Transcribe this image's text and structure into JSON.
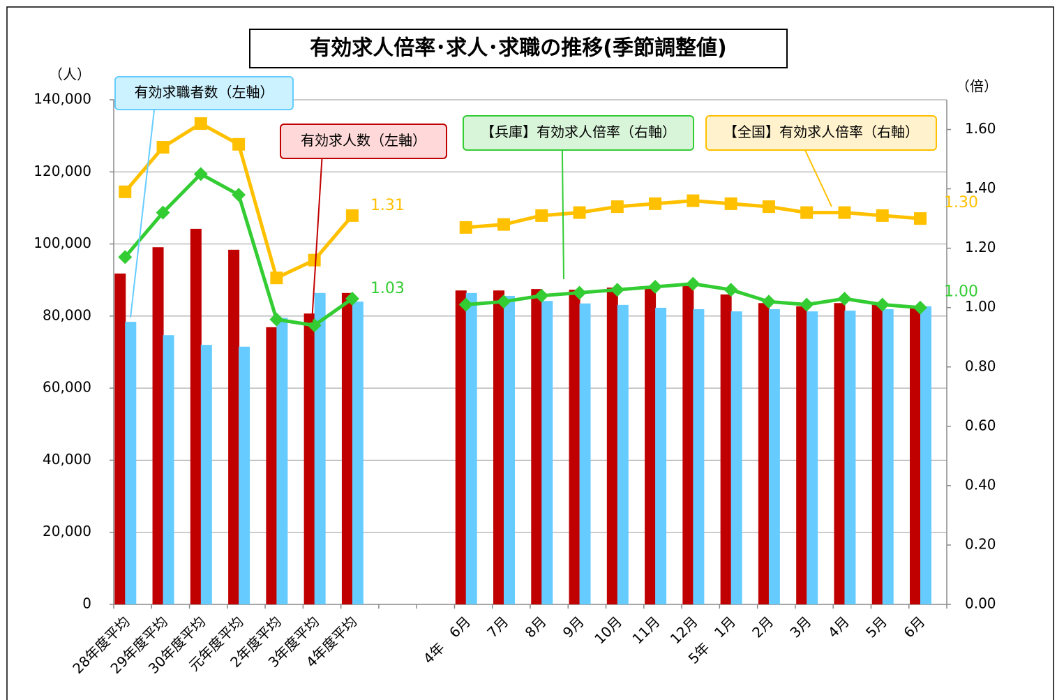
{
  "chart_data": {
    "type": "bar-line",
    "title": "有効求人倍率･求人･求職の推移(季節調整値)",
    "y_unit": "（人）",
    "y2_unit": "（倍）",
    "categories": [
      "28年度平均",
      "29年度平均",
      "30年度平均",
      "元年度平均",
      "2年度平均",
      "3年度平均",
      "4年度平均",
      null,
      null,
      "4年　6月",
      "7月",
      "8月",
      "9月",
      "10月",
      "11月",
      "12月",
      "5年　1月",
      "2月",
      "3月",
      "4月",
      "5月",
      "6月"
    ],
    "ylim": [
      0,
      140000
    ],
    "yticks": [
      0,
      {
        "value": 20000,
        "label": "20,000"
      },
      {
        "value": 40000,
        "label": "40,000"
      },
      {
        "value": 60000,
        "label": "60,000"
      },
      {
        "value": 80000,
        "label": "80,000"
      },
      {
        "value": 100000,
        "label": "100,000"
      },
      {
        "value": 120000,
        "label": "120,000"
      },
      {
        "value": 140000,
        "label": "140,000"
      }
    ],
    "y2lim": [
      0,
      1.7
    ],
    "y2ticks": [
      {
        "value": 0,
        "label": "0.00"
      },
      {
        "value": 0.2,
        "label": "0.20"
      },
      {
        "value": 0.4,
        "label": "0.40"
      },
      {
        "value": 0.6,
        "label": "0.60"
      },
      {
        "value": 0.8,
        "label": "0.80"
      },
      {
        "value": 1,
        "label": "1.00"
      },
      {
        "value": 1.2,
        "label": "1.20"
      },
      {
        "value": 1.4,
        "label": "1.40"
      },
      {
        "value": 1.6,
        "label": "1.60"
      }
    ],
    "grid": true,
    "series": [
      {
        "name": "有効求人数（左軸）",
        "kind": "bar",
        "color": "#c00000",
        "values": [
          91800,
          99100,
          104200,
          98400,
          76900,
          80700,
          86400,
          null,
          null,
          87100,
          87100,
          87500,
          87300,
          87900,
          87900,
          88300,
          86000,
          83600,
          82700,
          83600,
          83100,
          82500
        ]
      },
      {
        "name": "有効求職者数（左軸）",
        "kind": "bar",
        "color": "#66ccff",
        "values": [
          78400,
          74700,
          72000,
          71500,
          79500,
          86400,
          84000,
          null,
          null,
          86400,
          85600,
          84200,
          83500,
          83100,
          82300,
          81900,
          81300,
          81900,
          81300,
          81500,
          81900,
          82700
        ]
      },
      {
        "name": "【兵庫】有効求人倍率（右軸）",
        "kind": "line",
        "axis": "y2",
        "color": "#33cc33",
        "marker": "diamond",
        "values": [
          1.17,
          1.32,
          1.45,
          1.38,
          0.96,
          0.94,
          1.03,
          null,
          null,
          1.01,
          1.02,
          1.04,
          1.05,
          1.06,
          1.07,
          1.08,
          1.06,
          1.02,
          1.01,
          1.03,
          1.01,
          1
        ],
        "value_labels": [
          null,
          null,
          null,
          null,
          null,
          null,
          "1.03",
          null,
          null,
          null,
          null,
          null,
          null,
          null,
          null,
          null,
          null,
          null,
          null,
          null,
          null,
          "1.00"
        ]
      },
      {
        "name": "【全国】有効求人倍率（右軸）",
        "kind": "line",
        "axis": "y2",
        "color": "#ffc000",
        "marker": "square",
        "values": [
          1.39,
          1.54,
          1.62,
          1.55,
          1.1,
          1.16,
          1.31,
          null,
          null,
          1.27,
          1.28,
          1.31,
          1.32,
          1.34,
          1.35,
          1.36,
          1.35,
          1.34,
          1.32,
          1.32,
          1.31,
          1.3
        ],
        "value_labels": [
          null,
          null,
          null,
          null,
          null,
          null,
          "1.31",
          null,
          null,
          null,
          null,
          null,
          null,
          null,
          null,
          null,
          null,
          null,
          null,
          null,
          null,
          "1.30"
        ]
      }
    ]
  }
}
